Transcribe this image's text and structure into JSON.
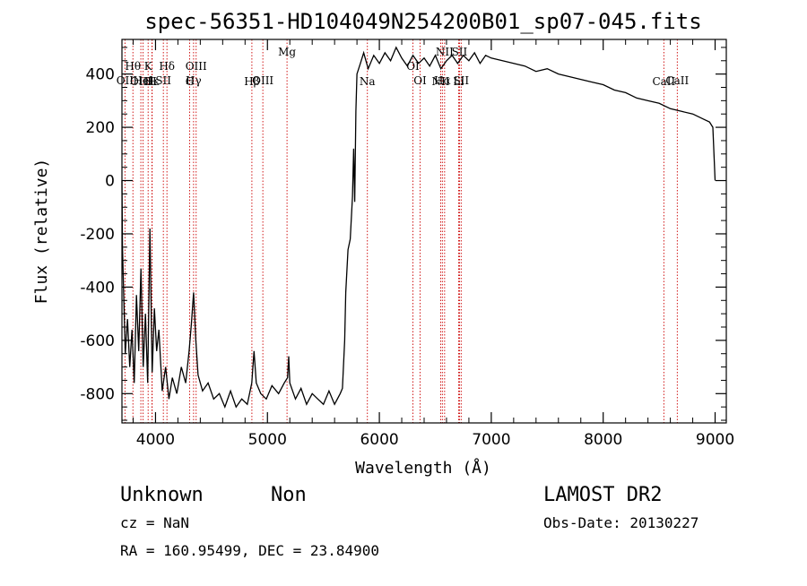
{
  "chart_data": {
    "type": "line",
    "title": "spec-56351-HD104049N254200B01_sp07-045.fits",
    "xlabel": "Wavelength (Å)",
    "ylabel": "Flux (relative)",
    "xlim": [
      3700,
      9100
    ],
    "ylim": [
      -910,
      530
    ],
    "xticks": [
      4000,
      5000,
      6000,
      7000,
      8000,
      9000
    ],
    "yticks": [
      -800,
      -600,
      -400,
      -200,
      0,
      200,
      400
    ],
    "grid": false,
    "series": [
      {
        "points": [
          [
            3700,
            0
          ],
          [
            3705,
            -250
          ],
          [
            3715,
            -420
          ],
          [
            3730,
            -650
          ],
          [
            3750,
            -520
          ],
          [
            3770,
            -700
          ],
          [
            3790,
            -560
          ],
          [
            3810,
            -760
          ],
          [
            3830,
            -430
          ],
          [
            3850,
            -640
          ],
          [
            3870,
            -330
          ],
          [
            3890,
            -700
          ],
          [
            3910,
            -500
          ],
          [
            3930,
            -760
          ],
          [
            3950,
            -180
          ],
          [
            3970,
            -720
          ],
          [
            3990,
            -480
          ],
          [
            4010,
            -640
          ],
          [
            4030,
            -560
          ],
          [
            4060,
            -790
          ],
          [
            4090,
            -700
          ],
          [
            4120,
            -820
          ],
          [
            4150,
            -740
          ],
          [
            4190,
            -800
          ],
          [
            4230,
            -700
          ],
          [
            4270,
            -760
          ],
          [
            4300,
            -640
          ],
          [
            4320,
            -540
          ],
          [
            4340,
            -420
          ],
          [
            4360,
            -600
          ],
          [
            4380,
            -730
          ],
          [
            4420,
            -790
          ],
          [
            4470,
            -760
          ],
          [
            4520,
            -820
          ],
          [
            4570,
            -800
          ],
          [
            4620,
            -850
          ],
          [
            4670,
            -790
          ],
          [
            4720,
            -850
          ],
          [
            4770,
            -820
          ],
          [
            4820,
            -840
          ],
          [
            4860,
            -760
          ],
          [
            4880,
            -640
          ],
          [
            4900,
            -760
          ],
          [
            4940,
            -800
          ],
          [
            4990,
            -820
          ],
          [
            5040,
            -770
          ],
          [
            5100,
            -800
          ],
          [
            5150,
            -760
          ],
          [
            5180,
            -740
          ],
          [
            5190,
            -660
          ],
          [
            5200,
            -760
          ],
          [
            5250,
            -820
          ],
          [
            5300,
            -780
          ],
          [
            5350,
            -840
          ],
          [
            5400,
            -800
          ],
          [
            5450,
            -820
          ],
          [
            5500,
            -840
          ],
          [
            5550,
            -790
          ],
          [
            5600,
            -840
          ],
          [
            5650,
            -800
          ],
          [
            5670,
            -780
          ],
          [
            5690,
            -600
          ],
          [
            5700,
            -420
          ],
          [
            5720,
            -260
          ],
          [
            5740,
            -220
          ],
          [
            5760,
            -60
          ],
          [
            5770,
            120
          ],
          [
            5780,
            -80
          ],
          [
            5790,
            260
          ],
          [
            5800,
            400
          ],
          [
            5830,
            440
          ],
          [
            5860,
            480
          ],
          [
            5900,
            420
          ],
          [
            5950,
            470
          ],
          [
            6000,
            440
          ],
          [
            6050,
            480
          ],
          [
            6100,
            450
          ],
          [
            6150,
            500
          ],
          [
            6200,
            460
          ],
          [
            6250,
            430
          ],
          [
            6300,
            470
          ],
          [
            6350,
            440
          ],
          [
            6400,
            460
          ],
          [
            6450,
            430
          ],
          [
            6500,
            470
          ],
          [
            6550,
            420
          ],
          [
            6600,
            450
          ],
          [
            6650,
            470
          ],
          [
            6700,
            440
          ],
          [
            6750,
            470
          ],
          [
            6800,
            450
          ],
          [
            6850,
            480
          ],
          [
            6900,
            440
          ],
          [
            6950,
            470
          ],
          [
            7000,
            460
          ],
          [
            7100,
            450
          ],
          [
            7200,
            440
          ],
          [
            7300,
            430
          ],
          [
            7400,
            410
          ],
          [
            7500,
            420
          ],
          [
            7600,
            400
          ],
          [
            7700,
            390
          ],
          [
            7800,
            380
          ],
          [
            7900,
            370
          ],
          [
            8000,
            360
          ],
          [
            8100,
            340
          ],
          [
            8200,
            330
          ],
          [
            8300,
            310
          ],
          [
            8400,
            300
          ],
          [
            8500,
            290
          ],
          [
            8600,
            270
          ],
          [
            8700,
            260
          ],
          [
            8800,
            250
          ],
          [
            8850,
            240
          ],
          [
            8900,
            230
          ],
          [
            8950,
            220
          ],
          [
            8980,
            200
          ],
          [
            9000,
            0
          ]
        ]
      }
    ],
    "annotations": {
      "spectral_lines": [
        {
          "label": "Hθ",
          "wavelength": 3798,
          "row": 1
        },
        {
          "label": "OII",
          "wavelength": 3727,
          "row": 2
        },
        {
          "label": "OIII",
          "wavelength": 3869,
          "row": 3
        },
        {
          "label": "K",
          "wavelength": 3934,
          "row": 1
        },
        {
          "label": "Hε",
          "wavelength": 3970,
          "row": 3
        },
        {
          "label": "HeI",
          "wavelength": 3889,
          "row": 2
        },
        {
          "label": "H",
          "wavelength": 3968,
          "row": 3
        },
        {
          "label": "SII",
          "wavelength": 4070,
          "row": 2
        },
        {
          "label": "Hδ",
          "wavelength": 4102,
          "row": 1
        },
        {
          "label": "OIII",
          "wavelength": 4363,
          "row": 1
        },
        {
          "label": "Hγ",
          "wavelength": 4340,
          "row": 2
        },
        {
          "label": "G",
          "wavelength": 4305,
          "row": 3
        },
        {
          "label": "OIII",
          "wavelength": 4959,
          "row": 2
        },
        {
          "label": "Hβ",
          "wavelength": 4861,
          "row": 3
        },
        {
          "label": "Mg",
          "wavelength": 5175,
          "row": 0
        },
        {
          "label": "Na",
          "wavelength": 5893,
          "row": 3
        },
        {
          "label": "OI",
          "wavelength": 6300,
          "row": 1
        },
        {
          "label": "OI",
          "wavelength": 6364,
          "row": 2
        },
        {
          "label": "NII",
          "wavelength": 6583,
          "row": 0
        },
        {
          "label": "Hα",
          "wavelength": 6563,
          "row": 2
        },
        {
          "label": "NII",
          "wavelength": 6548,
          "row": 3
        },
        {
          "label": "SII",
          "wavelength": 6716,
          "row": 0
        },
        {
          "label": "SII",
          "wavelength": 6731,
          "row": 2
        },
        {
          "label": "Li",
          "wavelength": 6708,
          "row": 3
        },
        {
          "label": "CaII",
          "wavelength": 8662,
          "row": 2
        },
        {
          "label": "CaII",
          "wavelength": 8542,
          "row": 3
        }
      ]
    }
  },
  "info": {
    "object_class": "Unknown",
    "subclass": "Non",
    "cz": "cz = NaN",
    "coords": "RA = 160.95499, DEC =  23.84900",
    "survey": "LAMOST DR2",
    "obs_date": "Obs-Date: 20130227"
  },
  "colors": {
    "spectrum": "#000000",
    "line_marker": "#cc0000",
    "axes": "#000000",
    "background": "#ffffff"
  }
}
